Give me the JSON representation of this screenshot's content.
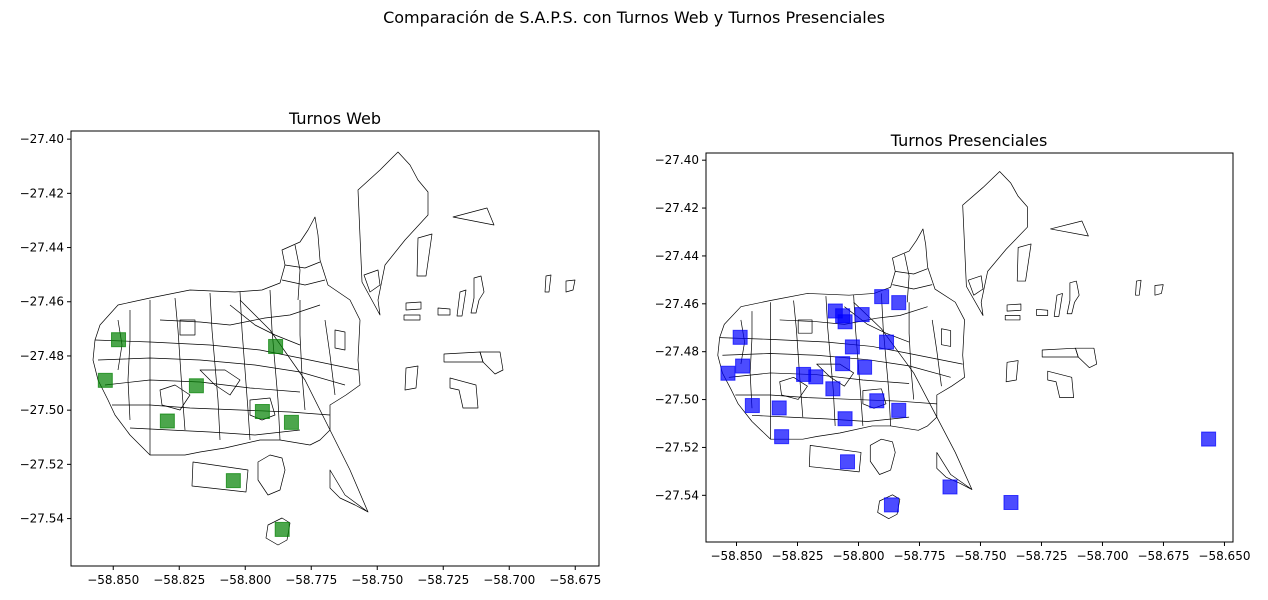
{
  "figure": {
    "suptitle": "Comparación de S.A.P.S. con Turnos Web y Turnos Presenciales"
  },
  "chart_data": [
    {
      "type": "scatter",
      "title": "Turnos Web",
      "xlabel": "",
      "ylabel": "",
      "xlim": [
        -58.866,
        -58.666
      ],
      "ylim": [
        -27.5575,
        -27.397
      ],
      "xticks": [
        -58.85,
        -58.825,
        -58.8,
        -58.775,
        -58.75,
        -58.725,
        -58.7,
        -58.675
      ],
      "xtick_labels": [
        "−58.850",
        "−58.825",
        "−58.800",
        "−58.775",
        "−58.750",
        "−58.725",
        "−58.700",
        "−58.675"
      ],
      "yticks": [
        -27.4,
        -27.42,
        -27.44,
        -27.46,
        -27.48,
        -27.5,
        -27.52,
        -27.54
      ],
      "ytick_labels": [
        "−27.40",
        "−27.42",
        "−27.44",
        "−27.46",
        "−27.48",
        "−27.50",
        "−27.52",
        "−27.54"
      ],
      "marker_color": "#008000",
      "series": [
        {
          "name": "Turnos Web",
          "points": [
            {
              "x": -58.848,
              "y": -27.474
            },
            {
              "x": -58.853,
              "y": -27.489
            },
            {
              "x": -58.8295,
              "y": -27.504
            },
            {
              "x": -58.8185,
              "y": -27.491
            },
            {
              "x": -58.7885,
              "y": -27.4765
            },
            {
              "x": -58.7935,
              "y": -27.5005
            },
            {
              "x": -58.7825,
              "y": -27.5045
            },
            {
              "x": -58.8045,
              "y": -27.526
            },
            {
              "x": -58.786,
              "y": -27.544
            }
          ]
        }
      ]
    },
    {
      "type": "scatter",
      "title": "Turnos Presenciales",
      "xlabel": "",
      "ylabel": "",
      "xlim": [
        -58.8625,
        -58.6465
      ],
      "ylim": [
        -27.5595,
        -27.397
      ],
      "xticks": [
        -58.85,
        -58.825,
        -58.8,
        -58.775,
        -58.75,
        -58.725,
        -58.7,
        -58.675,
        -58.65
      ],
      "xtick_labels": [
        "−58.850",
        "−58.825",
        "−58.800",
        "−58.775",
        "−58.750",
        "−58.725",
        "−58.700",
        "−58.675",
        "−58.650"
      ],
      "yticks": [
        -27.4,
        -27.42,
        -27.44,
        -27.46,
        -27.48,
        -27.5,
        -27.52,
        -27.54
      ],
      "ytick_labels": [
        "−27.40",
        "−27.42",
        "−27.44",
        "−27.46",
        "−27.48",
        "−27.50",
        "−27.52",
        "−27.54"
      ],
      "marker_color": "#0000ff",
      "series": [
        {
          "name": "Turnos Presenciales",
          "points": [
            {
              "x": -58.8485,
              "y": -27.474
            },
            {
              "x": -58.8475,
              "y": -27.486
            },
            {
              "x": -58.8535,
              "y": -27.489
            },
            {
              "x": -58.8435,
              "y": -27.5025
            },
            {
              "x": -58.8325,
              "y": -27.5035
            },
            {
              "x": -58.8225,
              "y": -27.4895
            },
            {
              "x": -58.8175,
              "y": -27.4905
            },
            {
              "x": -58.8105,
              "y": -27.4955
            },
            {
              "x": -58.8315,
              "y": -27.5155
            },
            {
              "x": -58.8055,
              "y": -27.508
            },
            {
              "x": -58.8025,
              "y": -27.478
            },
            {
              "x": -58.8065,
              "y": -27.485
            },
            {
              "x": -58.8095,
              "y": -27.463
            },
            {
              "x": -58.8065,
              "y": -27.465
            },
            {
              "x": -58.8055,
              "y": -27.4675
            },
            {
              "x": -58.7985,
              "y": -27.4645
            },
            {
              "x": -58.7905,
              "y": -27.457
            },
            {
              "x": -58.7835,
              "y": -27.4595
            },
            {
              "x": -58.7885,
              "y": -27.476
            },
            {
              "x": -58.7975,
              "y": -27.4865
            },
            {
              "x": -58.7925,
              "y": -27.5005
            },
            {
              "x": -58.7835,
              "y": -27.5045
            },
            {
              "x": -58.8045,
              "y": -27.526
            },
            {
              "x": -58.7865,
              "y": -27.544
            },
            {
              "x": -58.7625,
              "y": -27.5365
            },
            {
              "x": -58.7375,
              "y": -27.543
            },
            {
              "x": -58.6565,
              "y": -27.5165
            }
          ]
        }
      ]
    }
  ]
}
